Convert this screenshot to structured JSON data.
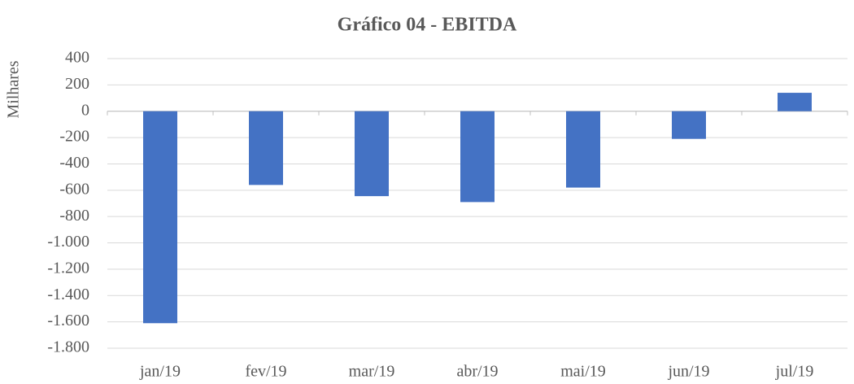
{
  "chart_data": {
    "type": "bar",
    "title": "Gráfico 04 - EBITDA",
    "ylabel": "Milhares",
    "categories": [
      "jan/19",
      "fev/19",
      "mar/19",
      "abr/19",
      "mai/19",
      "jun/19",
      "jul/19"
    ],
    "values": [
      -1610,
      -560,
      -645,
      -690,
      -580,
      -210,
      140
    ],
    "color": "#4472c4",
    "ylim": [
      -1800,
      400
    ],
    "yticks": [
      400,
      200,
      0,
      -200,
      -400,
      -600,
      -800,
      {
        "value": -1000,
        "label": "-1.000"
      },
      {
        "value": -1200,
        "label": "-1.200"
      },
      {
        "value": -1400,
        "label": "-1.400"
      },
      {
        "value": -1600,
        "label": "-1.600"
      },
      {
        "value": -1800,
        "label": "-1.800"
      }
    ],
    "grid": true
  }
}
